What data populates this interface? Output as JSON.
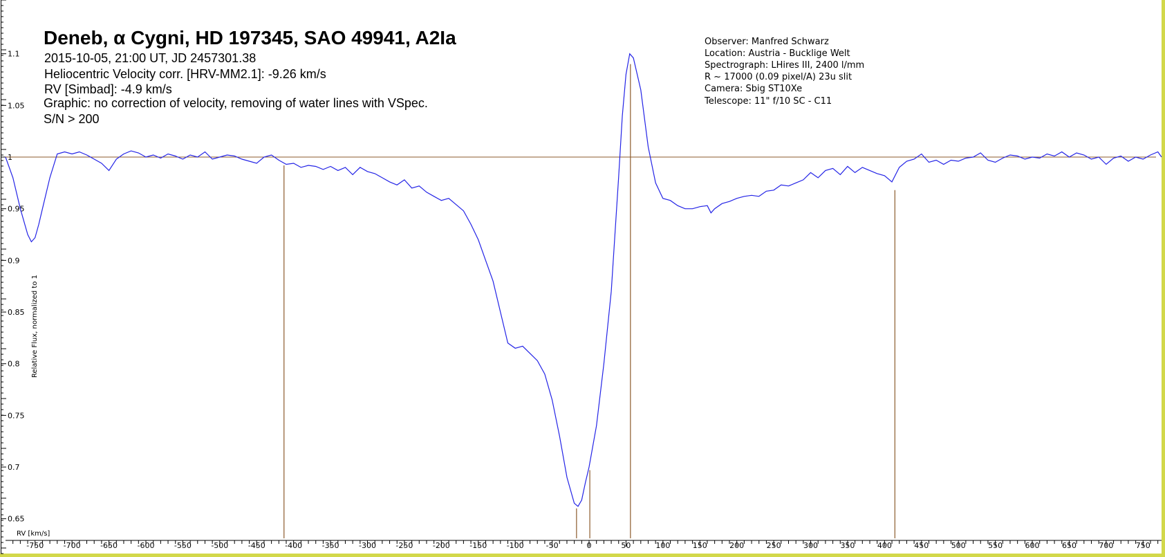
{
  "chart_data": {
    "type": "line",
    "title": "Deneb, α Cygni, HD 197345, SAO 49941, A2Ia",
    "subtitle_lines": [
      "2015-10-05, 21:00 UT, JD 2457301.38",
      "Heliocentric Velocity corr. [HRV-MM2.1]: -9.26 km/s",
      "RV [Simbad]: -4.9 km/s",
      "Graphic: no correction of velocity, removing of water lines with VSpec.",
      "S/N > 200"
    ],
    "observer_lines": [
      "Observer: Manfred Schwarz",
      "Location: Austria - Bucklige Welt",
      "Spectrograph: LHires III, 2400 l/mm",
      "R ~ 17000 (0.09 pixel/A) 23u slit",
      "Camera: Sbig ST10Xe",
      "Telescope: 11\" f/10 SC - C11"
    ],
    "xlabel": "RV [km/s]",
    "ylabel": "Relative Flux, normalized to 1",
    "xlim": [
      -790,
      775
    ],
    "ylim": [
      0.623,
      1.148
    ],
    "xticks": [
      -750,
      -700,
      -650,
      -600,
      -550,
      -500,
      -450,
      -400,
      -350,
      -300,
      -250,
      -200,
      -150,
      -100,
      -50,
      0,
      50,
      100,
      150,
      200,
      250,
      300,
      350,
      400,
      450,
      500,
      550,
      600,
      650,
      700,
      750
    ],
    "yticks": [
      0.65,
      0.7,
      0.75,
      0.8,
      0.85,
      0.9,
      0.95,
      1,
      1.05,
      1.1
    ],
    "grid": false,
    "reference_line": {
      "y": 1.0,
      "color": "#8b5a2b"
    },
    "marker_lines": [
      {
        "x": -413,
        "y_top": 0.992
      },
      {
        "x": -17,
        "y_top": 0.66
      },
      {
        "x": 1,
        "y_top": 0.697
      },
      {
        "x": 56,
        "y_top": 1.09
      },
      {
        "x": 414,
        "y_top": 0.968
      }
    ],
    "series": [
      {
        "color": "#2323e6",
        "x": [
          -790,
          -780,
          -770,
          -760,
          -755,
          -750,
          -745,
          -740,
          -730,
          -720,
          -710,
          -700,
          -690,
          -680,
          -670,
          -660,
          -650,
          -640,
          -630,
          -620,
          -610,
          -600,
          -590,
          -580,
          -570,
          -560,
          -550,
          -540,
          -530,
          -520,
          -510,
          -500,
          -490,
          -480,
          -470,
          -460,
          -450,
          -440,
          -430,
          -420,
          -410,
          -400,
          -390,
          -380,
          -370,
          -360,
          -350,
          -340,
          -330,
          -320,
          -310,
          -300,
          -290,
          -280,
          -270,
          -260,
          -250,
          -240,
          -230,
          -220,
          -210,
          -200,
          -190,
          -180,
          -170,
          -160,
          -150,
          -140,
          -130,
          -120,
          -110,
          -100,
          -90,
          -80,
          -70,
          -60,
          -50,
          -40,
          -30,
          -20,
          -15,
          -10,
          -5,
          0,
          10,
          20,
          30,
          40,
          45,
          50,
          55,
          60,
          70,
          80,
          90,
          100,
          110,
          120,
          130,
          140,
          150,
          160,
          165,
          170,
          180,
          190,
          200,
          210,
          220,
          230,
          240,
          250,
          260,
          270,
          280,
          290,
          300,
          310,
          320,
          330,
          340,
          350,
          360,
          370,
          380,
          390,
          400,
          410,
          420,
          430,
          440,
          450,
          460,
          470,
          480,
          490,
          500,
          510,
          520,
          530,
          540,
          550,
          560,
          570,
          580,
          590,
          600,
          610,
          620,
          630,
          640,
          650,
          660,
          670,
          680,
          690,
          700,
          710,
          720,
          730,
          740,
          750,
          760,
          770,
          775
        ],
        "y": [
          1.0,
          0.98,
          0.95,
          0.925,
          0.918,
          0.922,
          0.935,
          0.95,
          0.98,
          1.003,
          1.005,
          1.003,
          1.005,
          1.002,
          0.998,
          0.994,
          0.987,
          0.998,
          1.003,
          1.006,
          1.004,
          1.0,
          1.002,
          0.999,
          1.003,
          1.001,
          0.998,
          1.002,
          1.0,
          1.005,
          0.998,
          1.0,
          1.002,
          1.001,
          0.998,
          0.996,
          0.994,
          1.0,
          1.002,
          0.997,
          0.993,
          0.994,
          0.99,
          0.992,
          0.991,
          0.988,
          0.991,
          0.987,
          0.99,
          0.983,
          0.99,
          0.986,
          0.984,
          0.98,
          0.976,
          0.973,
          0.978,
          0.97,
          0.972,
          0.966,
          0.962,
          0.958,
          0.96,
          0.954,
          0.948,
          0.935,
          0.92,
          0.9,
          0.88,
          0.85,
          0.82,
          0.815,
          0.817,
          0.81,
          0.803,
          0.79,
          0.765,
          0.73,
          0.69,
          0.665,
          0.662,
          0.668,
          0.685,
          0.7,
          0.74,
          0.8,
          0.87,
          0.98,
          1.04,
          1.08,
          1.1,
          1.096,
          1.065,
          1.01,
          0.975,
          0.96,
          0.958,
          0.953,
          0.95,
          0.95,
          0.952,
          0.953,
          0.946,
          0.95,
          0.955,
          0.957,
          0.96,
          0.962,
          0.963,
          0.962,
          0.967,
          0.968,
          0.973,
          0.972,
          0.975,
          0.978,
          0.985,
          0.98,
          0.987,
          0.989,
          0.983,
          0.991,
          0.985,
          0.99,
          0.987,
          0.984,
          0.982,
          0.976,
          0.99,
          0.996,
          0.998,
          1.003,
          0.995,
          0.997,
          0.993,
          0.997,
          0.996,
          0.999,
          1.0,
          1.004,
          0.997,
          0.995,
          0.999,
          1.002,
          1.001,
          0.998,
          1.0,
          0.999,
          1.003,
          1.001,
          1.005,
          1.0,
          1.004,
          1.002,
          0.998,
          1.0,
          0.993,
          0.999,
          1.001,
          0.996,
          1.0,
          0.998,
          1.002,
          1.005,
          1.0
        ]
      }
    ]
  }
}
